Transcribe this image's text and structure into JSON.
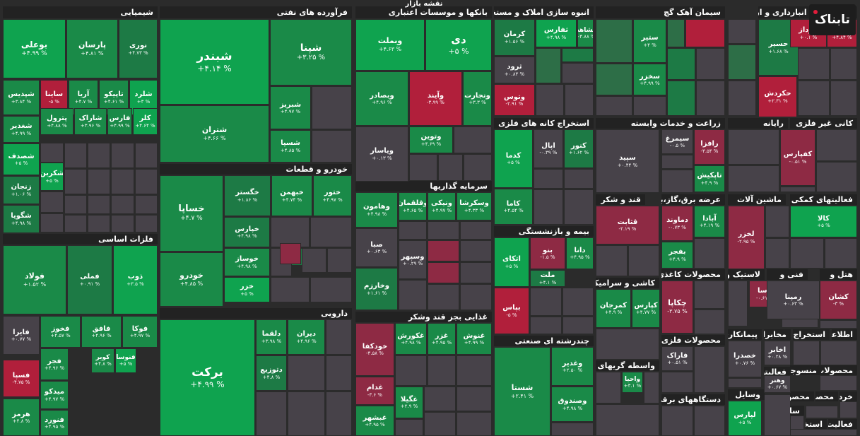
{
  "page_title": "نقشه بازار",
  "logo_text": "تابناک",
  "colors": {
    "dark_bg": "#2b2b2b",
    "green": "#1a8a48",
    "bright_green": "#0fa34f",
    "neutral": "#474249",
    "red": "#b11f3b"
  },
  "sectors": [
    {
      "id": "chem",
      "name": "شیمیایی"
    },
    {
      "id": "petro",
      "name": "فرآورده های نفتی"
    },
    {
      "id": "banks",
      "name": "بانکها و موسسات اعتباری"
    },
    {
      "id": "realestate",
      "name": "انبوه سازی املاک و مستغلات"
    },
    {
      "id": "cement",
      "name": "سیمان آهک گچ"
    },
    {
      "id": "telecom",
      "name": "حمل و نقل انبارداری و ارتباطات"
    },
    {
      "id": "basemetals",
      "name": "فلزات اساسی"
    },
    {
      "id": "auto",
      "name": "خودرو و قطعات"
    },
    {
      "id": "invest",
      "name": "سرمایه گذاریها"
    },
    {
      "id": "mining",
      "name": "استخراج کانه های فلزی"
    },
    {
      "id": "agri",
      "name": "زراعت و خدمات وابسته"
    },
    {
      "id": "computer",
      "name": "رایانه"
    },
    {
      "id": "nonmetal",
      "name": "کانی غیر فلزی"
    },
    {
      "id": "sugar",
      "name": "قند و شکر"
    },
    {
      "id": "supply",
      "name": "عرضه برق،گاز،بخار"
    },
    {
      "id": "machinery",
      "name": "ماشین آلات"
    },
    {
      "id": "auxfin",
      "name": "فعالیتهای کمکی به"
    },
    {
      "id": "insurance",
      "name": "بیمه و بازنشستگی"
    },
    {
      "id": "pharma",
      "name": "دارویی"
    },
    {
      "id": "food",
      "name": "غذایی بجز قند وشکر"
    },
    {
      "id": "multi",
      "name": "چندرشته ای صنعتی"
    },
    {
      "id": "tile",
      "name": "کاشی و سرامیک"
    },
    {
      "id": "paper",
      "name": "محصولات کاغذی"
    },
    {
      "id": "rubber",
      "name": "لاستیک و"
    },
    {
      "id": "tech",
      "name": "فنی و"
    },
    {
      "id": "hotel",
      "name": "هتل و"
    },
    {
      "id": "finint",
      "name": "واسطه گریهای مالی"
    },
    {
      "id": "contract",
      "name": "پیمانکاری"
    },
    {
      "id": "telecom2",
      "name": "مخابرات"
    },
    {
      "id": "extract",
      "name": "استخراج"
    },
    {
      "id": "info",
      "name": "اطلاعات"
    },
    {
      "id": "metalprod",
      "name": "محصولات فلزی"
    },
    {
      "id": "electric",
      "name": "دستگاههای برقی"
    },
    {
      "id": "vehicles",
      "name": "وسایل"
    },
    {
      "id": "textile",
      "name": "محصولات"
    },
    {
      "id": "fabric",
      "name": "منسوجات"
    },
    {
      "id": "activ",
      "name": "فعالیتها"
    },
    {
      "id": "retail",
      "name": "خرده"
    },
    {
      "id": "exclusive",
      "name": "محصر"
    },
    {
      "id": "products",
      "name": "محصولا"
    },
    {
      "id": "sa",
      "name": "سا"
    },
    {
      "id": "extr2",
      "name": "استخر"
    },
    {
      "id": "activ2",
      "name": "فعالیت"
    }
  ],
  "tiles": [
    {
      "name": "بوعلی",
      "v": "+۴.۹۹ %",
      "c": "g2"
    },
    {
      "name": "پارسان",
      "v": "+۴.۸۱ %",
      "c": "g1"
    },
    {
      "name": "نوری",
      "v": "+۴.۷۳ %",
      "c": "g3"
    },
    {
      "name": "شپدیس",
      "v": "+۳.۸۴ %",
      "c": "g1"
    },
    {
      "name": "ساینا",
      "v": "-۵ %",
      "c": "r2"
    },
    {
      "name": "آریا",
      "v": "+۴.۷ %",
      "c": "g1"
    },
    {
      "name": "تاپیکو",
      "v": "+۴.۶۱ %",
      "c": "g1"
    },
    {
      "name": "شلرد",
      "v": "+۳ %",
      "c": "g2"
    },
    {
      "name": "شغدیر",
      "v": "+۴.۹۹ %",
      "c": "g1"
    },
    {
      "name": "پترول",
      "v": "+۴.۸۸ %",
      "c": "g1"
    },
    {
      "name": "شاراک",
      "v": "+۳.۹۶ %",
      "c": "g1"
    },
    {
      "name": "فارس",
      "v": "+۴.۹۹ %",
      "c": "g1"
    },
    {
      "name": "کلر",
      "v": "+۴.۶۴ %",
      "c": "g2"
    },
    {
      "name": "شصدف",
      "v": "+۵ %",
      "c": "g2"
    },
    {
      "name": "شکربن",
      "v": "+۵ %",
      "c": "g2"
    },
    {
      "name": "زنجان",
      "v": "+۱.۰۶ %",
      "c": "g3"
    },
    {
      "name": "شگویا",
      "v": "+۴.۹۸ %",
      "c": "g3"
    },
    {
      "name": "شبندر",
      "v": "+۴.۱۴ %",
      "c": "g2"
    },
    {
      "name": "شپنا",
      "v": "+۳.۲۵ %",
      "c": "g1"
    },
    {
      "name": "شتران",
      "v": "+۴.۶۶ %",
      "c": "g1"
    },
    {
      "name": "شبریز",
      "v": "+۴.۹۷ %",
      "c": "g1"
    },
    {
      "name": "شسپا",
      "v": "+۴.۸۵ %",
      "c": "g1"
    },
    {
      "name": "وبملت",
      "v": "+۴.۶۳ %",
      "c": "g2"
    },
    {
      "name": "دی",
      "v": "+۵ %",
      "c": "g2"
    },
    {
      "name": "وبصادر",
      "v": "+۴.۹۶ %",
      "c": "g1"
    },
    {
      "name": "وآیند",
      "v": "-۳.۹۹ %",
      "c": "r2"
    },
    {
      "name": "ونجارت",
      "v": "+۳.۳ %",
      "c": "g1"
    },
    {
      "name": "ویاسار",
      "v": "+۰.۱۳ %",
      "c": "nn"
    },
    {
      "name": "وتوین",
      "v": "+۴.۶۹ %",
      "c": "g1"
    },
    {
      "name": "کرمان",
      "v": "+۱.۵۶ %",
      "c": "g3"
    },
    {
      "name": "ثفارس",
      "v": "+۴.۹۸ %",
      "c": "g2"
    },
    {
      "name": "ثشاهد",
      "v": "+۴.۸۸ %",
      "c": "g1"
    },
    {
      "name": "ثرود",
      "v": "+۰.۸۳ %",
      "c": "nn"
    },
    {
      "name": "وتوس",
      "v": "-۲.۹۱ %",
      "c": "r2"
    },
    {
      "name": "ستیر",
      "v": "+۴ %",
      "c": "g1"
    },
    {
      "name": "سخزر",
      "v": "+۴.۹۹ %",
      "c": "g1"
    },
    {
      "name": "حسیر",
      "v": "+۱.۶۸ %",
      "c": "g3"
    },
    {
      "name": "حکردش",
      "v": "+۲.۳۱ %",
      "c": "r2"
    },
    {
      "name": "فولاد",
      "v": "+۱.۵۲ %",
      "c": "g1"
    },
    {
      "name": "فملی",
      "v": "+۰.۹۱ %",
      "c": "g3"
    },
    {
      "name": "ذوب",
      "v": "+۳.۵ %",
      "c": "g2"
    },
    {
      "name": "فایرا",
      "v": "+۰.۷۷ %",
      "c": "nn"
    },
    {
      "name": "فخوز",
      "v": "+۴.۵۷ %",
      "c": "g1"
    },
    {
      "name": "فافق",
      "v": "+۴.۹۶ %",
      "c": "g1"
    },
    {
      "name": "فوکا",
      "v": "+۴.۹۷ %",
      "c": "g1"
    },
    {
      "name": "فجر",
      "v": "+۴.۹۶ %",
      "c": "g1"
    },
    {
      "name": "کویر",
      "v": "+۴.۸ %",
      "c": "g1"
    },
    {
      "name": "فنوسا",
      "v": "+۵ %",
      "c": "g2"
    },
    {
      "name": "فسپا",
      "v": "-۴.۷۵ %",
      "c": "r2"
    },
    {
      "name": "میدکو",
      "v": "+۴.۹۷ %",
      "c": "g1"
    },
    {
      "name": "هرمز",
      "v": "+۴.۸ %",
      "c": "g1"
    },
    {
      "name": "فنورد",
      "v": "+۴.۹۵ %",
      "c": "g1"
    },
    {
      "name": "خساپا",
      "v": "+۴.۷ %",
      "c": "g1"
    },
    {
      "name": "خگستر",
      "v": "+۱.۸۶ %",
      "c": "g3"
    },
    {
      "name": "خبهمن",
      "v": "+۴.۷۴ %",
      "c": "g1"
    },
    {
      "name": "ختور",
      "v": "+۴.۹۷ %",
      "c": "g1"
    },
    {
      "name": "خپارس",
      "v": "+۴.۹۸ %",
      "c": "g3"
    },
    {
      "name": "خودرو",
      "v": "+۴.۸۵ %",
      "c": "g1"
    },
    {
      "name": "خوساز",
      "v": "+۴.۹۸ %",
      "c": "g1"
    },
    {
      "name": "خزر",
      "v": "+۵ %",
      "c": "g2"
    },
    {
      "name": "وهامون",
      "v": "+۴.۹۸ %",
      "c": "g1"
    },
    {
      "name": "وقلقمان",
      "v": "+۴.۶۵ %",
      "c": "g1"
    },
    {
      "name": "ونیکی",
      "v": "+۴.۹۷ %",
      "c": "g1"
    },
    {
      "name": "وسکرشا",
      "v": "+۴.۳۳ %",
      "c": "g1"
    },
    {
      "name": "صبا",
      "v": "+۰.۶۳ %",
      "c": "nn"
    },
    {
      "name": "وسپهر",
      "v": "+۰.۲۹ %",
      "c": "nn"
    },
    {
      "name": "وخارزم",
      "v": "+۱.۶۱ %",
      "c": "g3"
    },
    {
      "name": "کدما",
      "v": "+۵ %",
      "c": "g2"
    },
    {
      "name": "اپال",
      "v": "-۰.۳۹ %",
      "c": "nn"
    },
    {
      "name": "کنور",
      "v": "+۱.۶۲ %",
      "c": "g3"
    },
    {
      "name": "کاما",
      "v": "+۴.۵۴ %",
      "c": "g1"
    },
    {
      "name": "سیمرغ",
      "v": "-۰.۵ %",
      "c": "nn"
    },
    {
      "name": "سپید",
      "v": "+۰.۴۴ %",
      "c": "nn"
    },
    {
      "name": "رافزا",
      "v": "-۳.۵۴ %",
      "c": "r1"
    },
    {
      "name": "تاپکیش",
      "v": "+۴.۹ %",
      "c": "g1"
    },
    {
      "name": "کفپارس",
      "v": "-۰.۵۱ %",
      "c": "r1"
    },
    {
      "name": "قثابت",
      "v": "-۲.۱۹ %",
      "c": "r1"
    },
    {
      "name": "دماوند",
      "v": "-۰.۷۳ %",
      "c": "r1"
    },
    {
      "name": "آبادا",
      "v": "+۴.۱۹ %",
      "c": "g1"
    },
    {
      "name": "بفجر",
      "v": "+۴.۹ %",
      "c": "g1"
    },
    {
      "name": "لخزر",
      "v": "-۲.۹۵ %",
      "c": "r1"
    },
    {
      "name": "کالا",
      "v": "+۵ %",
      "c": "g2"
    },
    {
      "name": "اتکای",
      "v": "+۵ %",
      "c": "g2"
    },
    {
      "name": "بنو",
      "v": "-۱.۵ %",
      "c": "r1"
    },
    {
      "name": "دانا",
      "v": "+۴.۹۵ %",
      "c": "g1"
    },
    {
      "name": "ملت",
      "v": "+۴.۱ %",
      "c": "g3"
    },
    {
      "name": "بپاس",
      "v": "-۵ %",
      "c": "r2"
    },
    {
      "name": "برکت",
      "v": "+۴.۹۹ %",
      "c": "g2"
    },
    {
      "name": "دلقما",
      "v": "+۳.۹۸ %",
      "c": "g1"
    },
    {
      "name": "دیران",
      "v": "+۴.۹۶ %",
      "c": "g1"
    },
    {
      "name": "دتوزیع",
      "v": "+۴.۸ %",
      "c": "g3"
    },
    {
      "name": "خودکفا",
      "v": "-۳.۵۸ %",
      "c": "r1"
    },
    {
      "name": "غکورش",
      "v": "+۴.۹۸ %",
      "c": "g1"
    },
    {
      "name": "غزر",
      "v": "+۴.۹۵ %",
      "c": "g1"
    },
    {
      "name": "غنوش",
      "v": "+۴.۹۹ %",
      "c": "g1"
    },
    {
      "name": "غدام",
      "v": "-۳.۶ %",
      "c": "r1"
    },
    {
      "name": "غگیلا",
      "v": "+۲.۹ %",
      "c": "g1"
    },
    {
      "name": "غبشهر",
      "v": "+۴.۹۵ %",
      "c": "g1"
    },
    {
      "name": "شستا",
      "v": "+۲.۴۱ %",
      "c": "g1"
    },
    {
      "name": "وغدیر",
      "v": "+۲.۵۰ %",
      "c": "g1"
    },
    {
      "name": "وصندوق",
      "v": "+۴.۹۸ %",
      "c": "g1"
    },
    {
      "name": "کمرجان",
      "v": "+۴.۹ %",
      "c": "g1"
    },
    {
      "name": "کپارس",
      "v": "+۴.۷۷ %",
      "c": "g1"
    },
    {
      "name": "چکاپا",
      "v": "-۳.۷۵ %",
      "c": "r1"
    },
    {
      "name": "پاسا",
      "v": "-۰.۶۱ %",
      "c": "r1"
    },
    {
      "name": "رمپنا",
      "v": "+۰.۶۳ %",
      "c": "nn"
    },
    {
      "name": "کشان",
      "v": "-۳ %",
      "c": "r1"
    },
    {
      "name": "واحیا",
      "v": "+۳.۱ %",
      "c": "g1"
    },
    {
      "name": "فاراک",
      "v": "+۰.۵۱ %",
      "c": "nn"
    },
    {
      "name": "خصدرا",
      "v": "+۰.۷۶ %",
      "c": "nn"
    },
    {
      "name": "اخابر",
      "v": "+۰.۲۸ %",
      "c": "nn"
    },
    {
      "name": "لپارس",
      "v": "+۵ %",
      "c": "g2"
    },
    {
      "name": "وهنر",
      "v": "+۰.۶۷ %",
      "c": "nn"
    },
    {
      "name": "اپرداز",
      "v": "+۰.۱ %",
      "c": "r2"
    },
    {
      "name": "حریل",
      "v": "+۴.۸۴ %",
      "c": "r2"
    }
  ]
}
